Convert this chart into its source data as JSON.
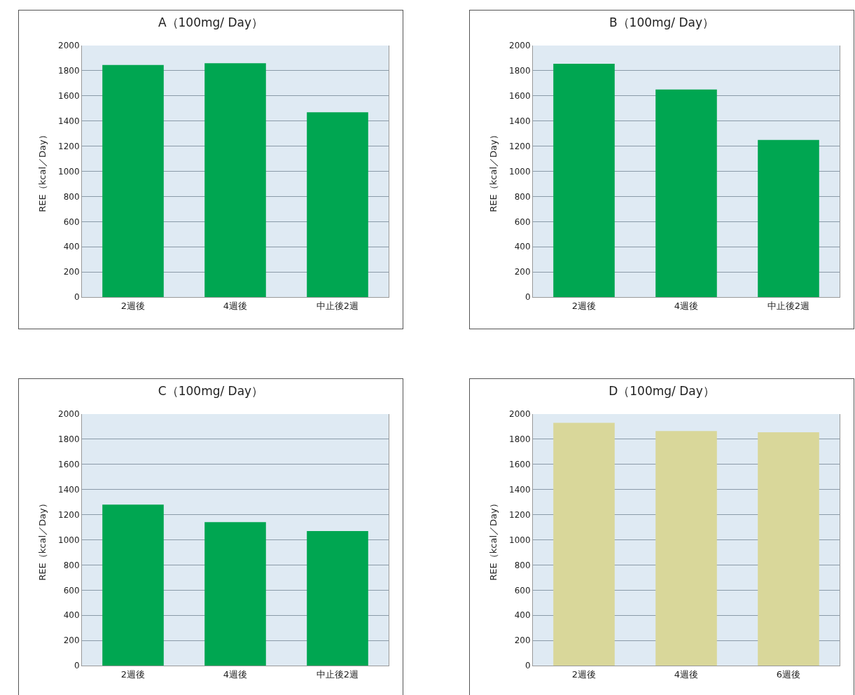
{
  "chart_data": [
    {
      "type": "bar",
      "title": "A（100mg/ Day）",
      "ylabel": "REE（kcal／Day）",
      "categories": [
        "2週後",
        "4週後",
        "中止後2週"
      ],
      "values": [
        1845,
        1860,
        1470
      ],
      "color": "#00a651",
      "ylim": [
        0,
        2000
      ],
      "yticks": [
        0,
        200,
        400,
        600,
        800,
        1000,
        1200,
        1400,
        1600,
        1800,
        2000
      ],
      "grid": "y"
    },
    {
      "type": "bar",
      "title": "B（100mg/ Day）",
      "ylabel": "REE（kcal／Day）",
      "categories": [
        "2週後",
        "4週後",
        "中止後2週"
      ],
      "values": [
        1855,
        1650,
        1250
      ],
      "color": "#00a651",
      "ylim": [
        0,
        2000
      ],
      "yticks": [
        0,
        200,
        400,
        600,
        800,
        1000,
        1200,
        1400,
        1600,
        1800,
        2000
      ],
      "grid": "y"
    },
    {
      "type": "bar",
      "title": "C（100mg/ Day）",
      "ylabel": "REE（kcal／Day）",
      "categories": [
        "2週後",
        "4週後",
        "中止後2週"
      ],
      "values": [
        1280,
        1140,
        1070
      ],
      "color": "#00a651",
      "ylim": [
        0,
        2000
      ],
      "yticks": [
        0,
        200,
        400,
        600,
        800,
        1000,
        1200,
        1400,
        1600,
        1800,
        2000
      ],
      "grid": "y"
    },
    {
      "type": "bar",
      "title": "D（100mg/ Day）",
      "ylabel": "REE（kcal／Day）",
      "categories": [
        "2週後",
        "4週後",
        "6週後"
      ],
      "values": [
        1930,
        1865,
        1855
      ],
      "color": "#d9d79a",
      "ylim": [
        0,
        2000
      ],
      "yticks": [
        0,
        200,
        400,
        600,
        800,
        1000,
        1200,
        1400,
        1600,
        1800,
        2000
      ],
      "grid": "y"
    }
  ]
}
